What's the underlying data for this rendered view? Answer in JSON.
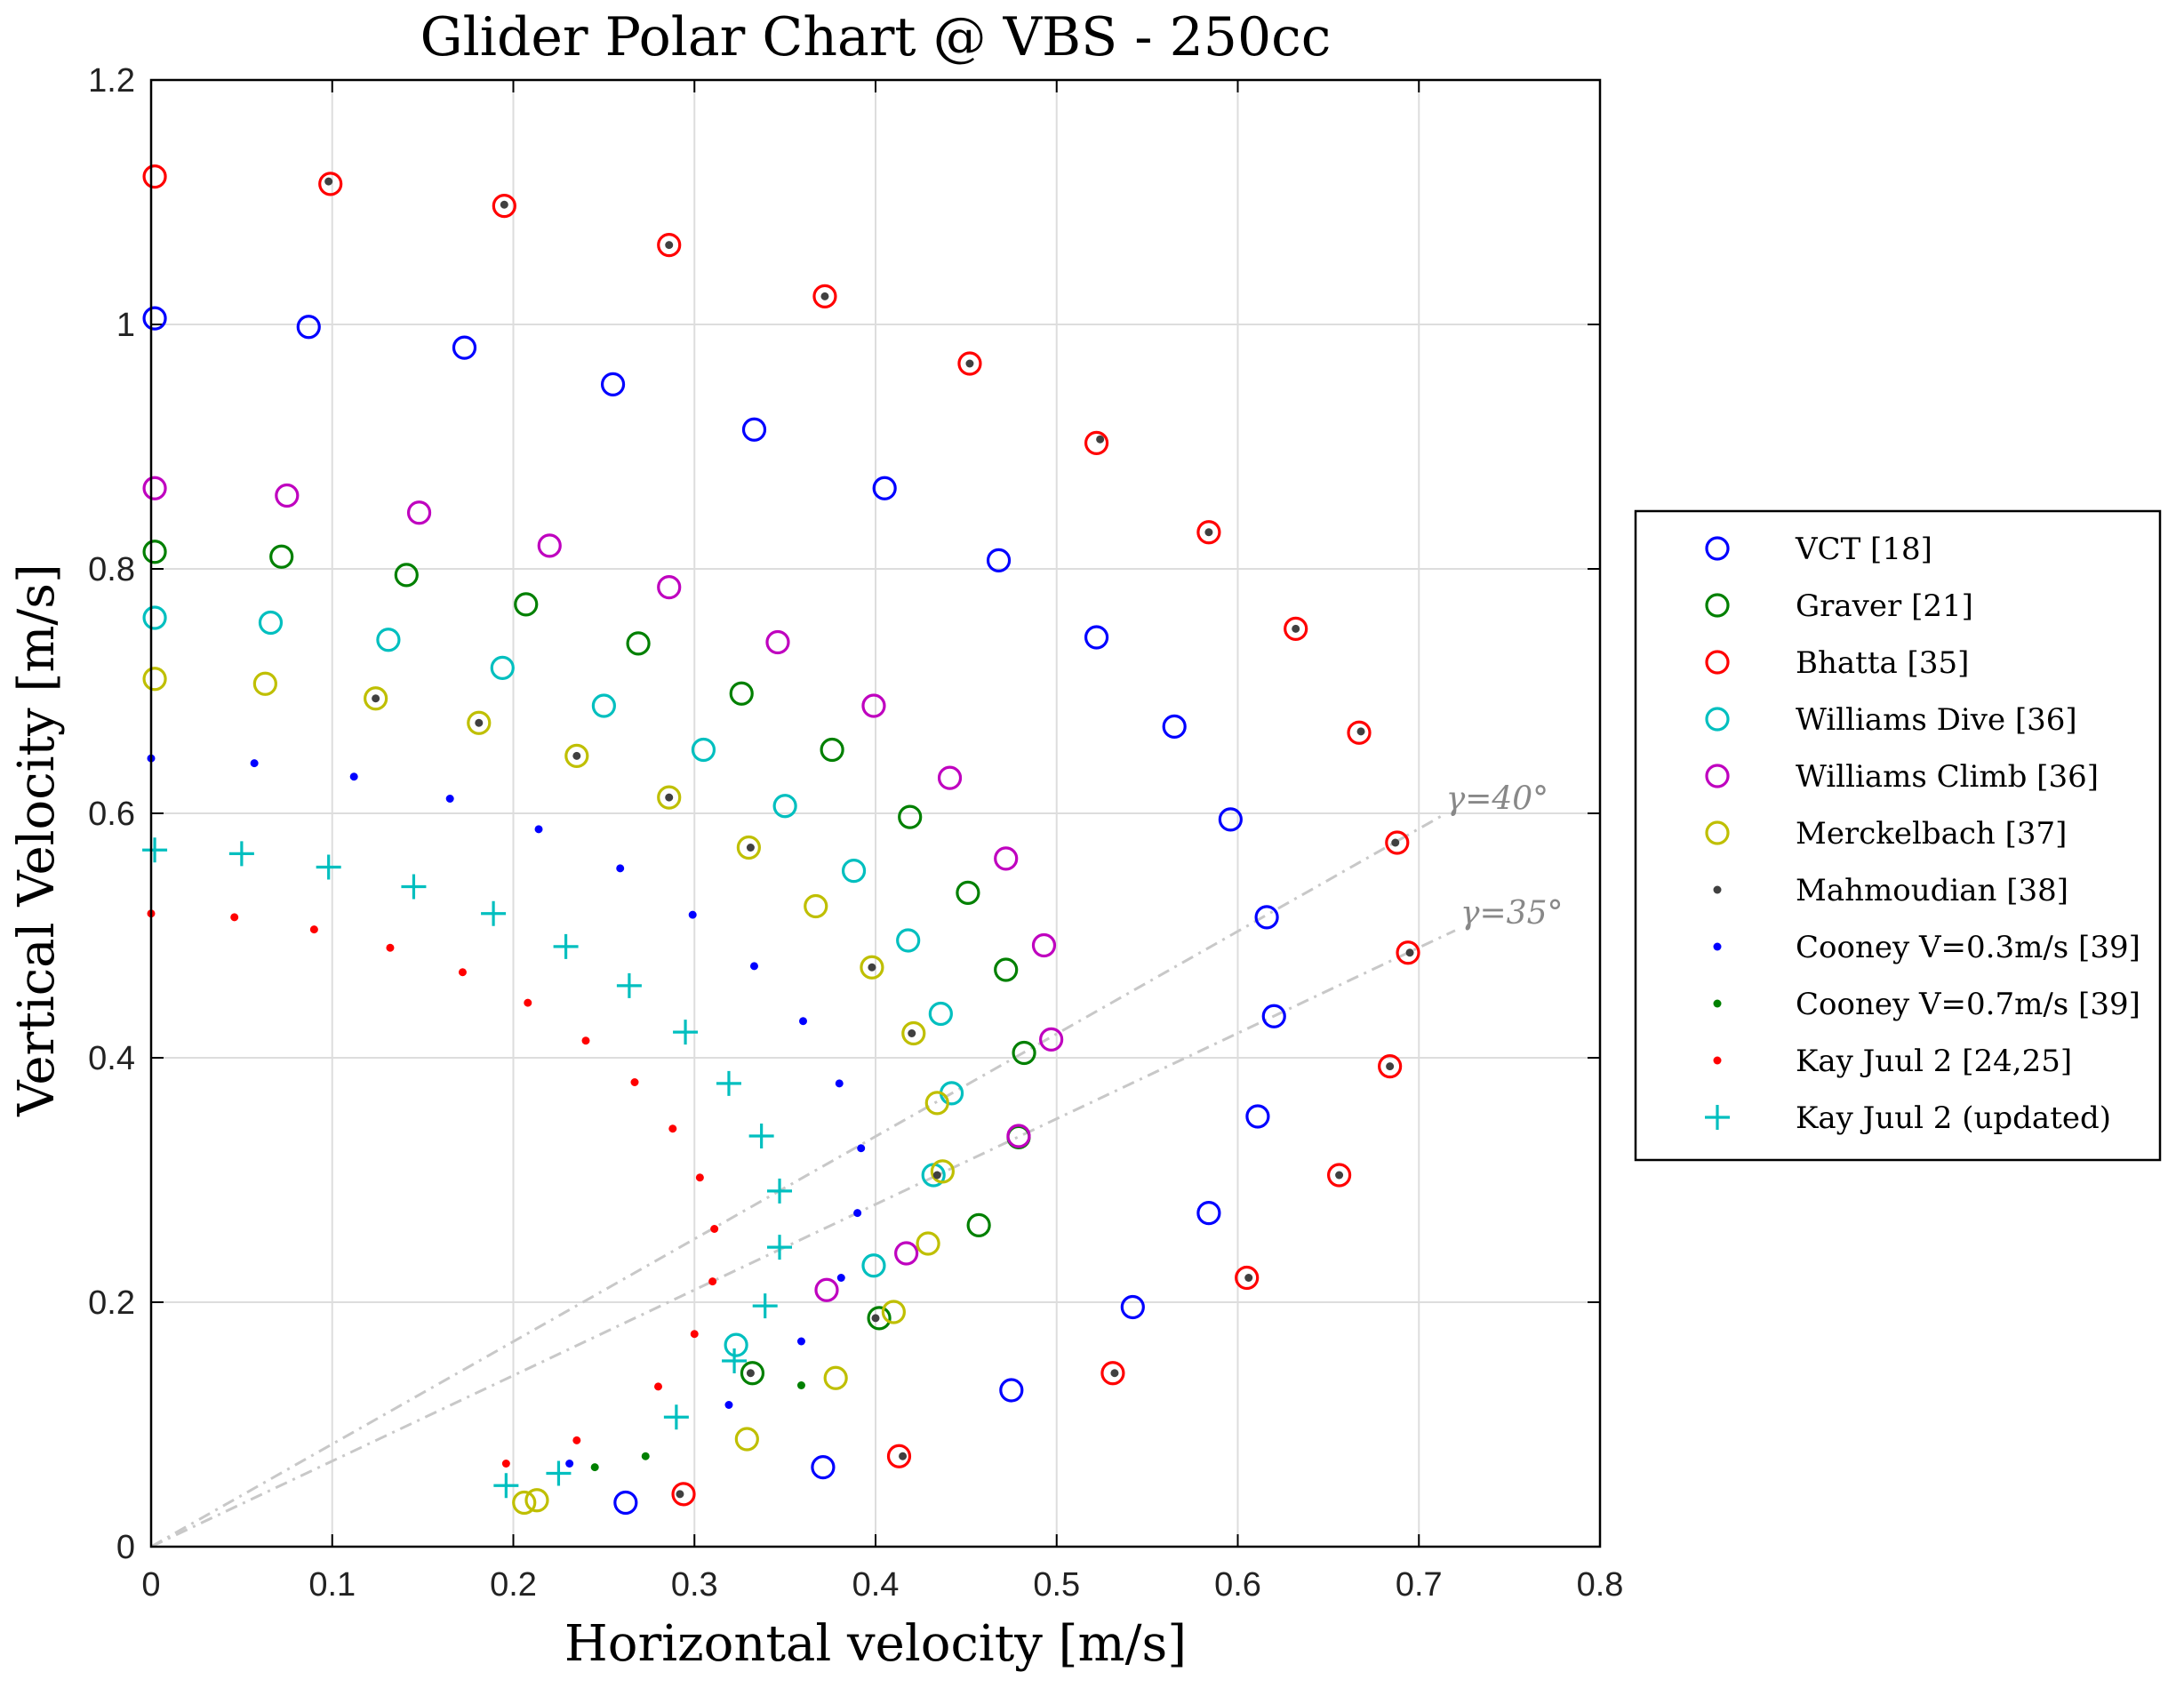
{
  "chart_data": {
    "type": "scatter",
    "title": "Glider Polar Chart @ VBS - 250cc",
    "xlabel": "Horizontal velocity [m/s]",
    "ylabel": "Vertical Velocity [m/s]",
    "xlim": [
      0,
      0.8
    ],
    "ylim": [
      0,
      1.2
    ],
    "xticks": [
      "0",
      "0.1",
      "0.2",
      "0.3",
      "0.4",
      "0.5",
      "0.6",
      "0.7",
      "0.8"
    ],
    "yticks": [
      "0",
      "0.2",
      "0.4",
      "0.6",
      "0.8",
      "1",
      "1.2"
    ],
    "grid": true,
    "legend_position": "right",
    "series": [
      {
        "name": "VCT [18]",
        "marker": "circle",
        "color": "#0000ff",
        "x": [
          0.002,
          0.087,
          0.173,
          0.255,
          0.333,
          0.405,
          0.468,
          0.522,
          0.565,
          0.596,
          0.616,
          0.62,
          0.611,
          0.584,
          0.542,
          0.475,
          0.371,
          0.262
        ],
        "y": [
          1.005,
          0.998,
          0.981,
          0.951,
          0.914,
          0.866,
          0.807,
          0.744,
          0.671,
          0.595,
          0.515,
          0.434,
          0.352,
          0.273,
          0.196,
          0.128,
          0.065,
          0.036
        ]
      },
      {
        "name": "Graver [21]",
        "marker": "circle",
        "color": "#008000",
        "x": [
          0.002,
          0.072,
          0.141,
          0.207,
          0.269,
          0.326,
          0.376,
          0.419,
          0.451,
          0.472,
          0.482,
          0.479,
          0.457,
          0.402,
          0.332
        ],
        "y": [
          0.814,
          0.81,
          0.795,
          0.771,
          0.739,
          0.698,
          0.652,
          0.597,
          0.535,
          0.472,
          0.404,
          0.335,
          0.263,
          0.187,
          0.142
        ]
      },
      {
        "name": "Bhatta [35]",
        "marker": "circle",
        "color": "#ff0000",
        "x": [
          0.002,
          0.099,
          0.195,
          0.286,
          0.372,
          0.452,
          0.522,
          0.584,
          0.632,
          0.667,
          0.688,
          0.694,
          0.684,
          0.656,
          0.605,
          0.531,
          0.413,
          0.294
        ],
        "y": [
          1.121,
          1.115,
          1.097,
          1.065,
          1.023,
          0.968,
          0.903,
          0.83,
          0.751,
          0.666,
          0.576,
          0.486,
          0.393,
          0.304,
          0.22,
          0.142,
          0.074,
          0.043
        ]
      },
      {
        "name": "Williams Dive [36]",
        "marker": "circle",
        "color": "#00bfbf",
        "x": [
          0.002,
          0.066,
          0.131,
          0.194,
          0.25,
          0.305,
          0.35,
          0.388,
          0.418,
          0.436,
          0.442,
          0.432,
          0.399,
          0.323
        ],
        "y": [
          0.76,
          0.756,
          0.742,
          0.719,
          0.688,
          0.652,
          0.606,
          0.553,
          0.496,
          0.436,
          0.371,
          0.304,
          0.23,
          0.165
        ]
      },
      {
        "name": "Williams Climb [36]",
        "marker": "circle",
        "color": "#bf00bf",
        "x": [
          0.002,
          0.075,
          0.148,
          0.22,
          0.286,
          0.346,
          0.399,
          0.441,
          0.472,
          0.493,
          0.497,
          0.479,
          0.417,
          0.373
        ],
        "y": [
          0.866,
          0.86,
          0.846,
          0.819,
          0.785,
          0.74,
          0.688,
          0.629,
          0.563,
          0.492,
          0.415,
          0.336,
          0.24,
          0.21
        ]
      },
      {
        "name": "Merckelbach [37]",
        "marker": "circle",
        "color": "#bfbf00",
        "x": [
          0.002,
          0.063,
          0.124,
          0.181,
          0.235,
          0.286,
          0.33,
          0.367,
          0.398,
          0.421,
          0.434,
          0.437,
          0.429,
          0.41,
          0.378,
          0.329,
          0.213,
          0.206
        ],
        "y": [
          0.71,
          0.706,
          0.694,
          0.674,
          0.647,
          0.613,
          0.572,
          0.524,
          0.474,
          0.42,
          0.363,
          0.307,
          0.248,
          0.192,
          0.138,
          0.088,
          0.038,
          0.036
        ]
      },
      {
        "name": "Mahmoudian [38]",
        "marker": "point",
        "color": "#404040",
        "x": [
          0.098,
          0.195,
          0.286,
          0.372,
          0.452,
          0.524,
          0.584,
          0.632,
          0.668,
          0.687,
          0.695,
          0.684,
          0.656,
          0.606,
          0.532,
          0.415,
          0.292,
          0.124,
          0.181,
          0.235,
          0.286,
          0.331,
          0.398,
          0.42,
          0.434,
          0.4,
          0.331
        ],
        "y": [
          1.117,
          1.098,
          1.065,
          1.023,
          0.968,
          0.906,
          0.83,
          0.751,
          0.667,
          0.576,
          0.486,
          0.393,
          0.304,
          0.22,
          0.142,
          0.074,
          0.043,
          0.694,
          0.674,
          0.647,
          0.613,
          0.572,
          0.474,
          0.42,
          0.304,
          0.187,
          0.142
        ]
      },
      {
        "name": "Cooney V=0.3m/s [39]",
        "marker": "point",
        "color": "#0000ff",
        "x": [
          0.0,
          0.057,
          0.112,
          0.165,
          0.214,
          0.259,
          0.299,
          0.333,
          0.36,
          0.38,
          0.392,
          0.39,
          0.381,
          0.359,
          0.319,
          0.231
        ],
        "y": [
          0.645,
          0.641,
          0.63,
          0.612,
          0.587,
          0.555,
          0.517,
          0.475,
          0.43,
          0.379,
          0.326,
          0.273,
          0.22,
          0.168,
          0.116,
          0.068
        ]
      },
      {
        "name": "Cooney V=0.7m/s [39]",
        "marker": "point",
        "color": "#008000",
        "x": [
          0.359,
          0.273,
          0.245
        ],
        "y": [
          0.132,
          0.074,
          0.065
        ]
      },
      {
        "name": "Kay Juul 2 [24,25]",
        "marker": "point",
        "color": "#ff0000",
        "x": [
          0.0,
          0.046,
          0.09,
          0.132,
          0.172,
          0.208,
          0.24,
          0.267,
          0.288,
          0.303,
          0.311,
          0.31,
          0.3,
          0.28,
          0.235,
          0.196
        ],
        "y": [
          0.518,
          0.515,
          0.505,
          0.49,
          0.47,
          0.445,
          0.414,
          0.38,
          0.342,
          0.302,
          0.26,
          0.217,
          0.174,
          0.131,
          0.087,
          0.068
        ]
      },
      {
        "name": "Kay Juul 2 (updated)",
        "marker": "plus",
        "color": "#00bfbf",
        "x": [
          0.002,
          0.05,
          0.098,
          0.145,
          0.189,
          0.229,
          0.264,
          0.295,
          0.319,
          0.337,
          0.347,
          0.347,
          0.339,
          0.322,
          0.29,
          0.225,
          0.196
        ],
        "y": [
          0.57,
          0.567,
          0.556,
          0.54,
          0.518,
          0.491,
          0.459,
          0.421,
          0.379,
          0.336,
          0.291,
          0.245,
          0.197,
          0.152,
          0.106,
          0.06,
          0.05
        ]
      }
    ],
    "annotations": [
      {
        "text": "γ=40°",
        "angle_deg": 40,
        "line_to_x": 0.712
      },
      {
        "text": "γ=35°",
        "angle_deg": 35,
        "line_to_x": 0.72
      }
    ]
  }
}
